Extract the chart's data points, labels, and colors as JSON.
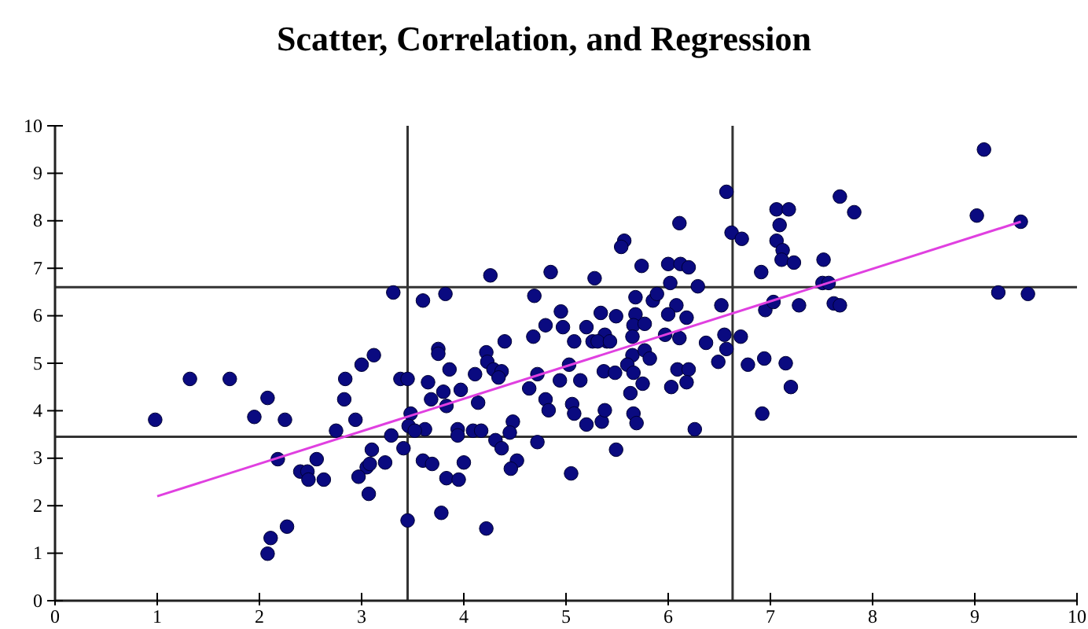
{
  "chart_data": {
    "type": "scatter",
    "title": "Scatter, Correlation, and Regression",
    "xlim": [
      0,
      10
    ],
    "ylim": [
      0,
      10
    ],
    "xticks": [
      0,
      1,
      2,
      3,
      4,
      5,
      6,
      7,
      8,
      9,
      10
    ],
    "yticks": [
      0,
      1,
      2,
      3,
      4,
      5,
      6,
      7,
      8,
      9,
      10
    ],
    "grid": false,
    "ref_lines": [
      {
        "axis": "x",
        "value": 3.45,
        "color": "#333333"
      },
      {
        "axis": "x",
        "value": 6.63,
        "color": "#333333"
      },
      {
        "axis": "y",
        "value": 3.45,
        "color": "#333333"
      },
      {
        "axis": "y",
        "value": 6.6,
        "color": "#333333"
      }
    ],
    "series": [
      {
        "color": "#0a0a80",
        "marker": "circle",
        "x": [
          0.98,
          1.32,
          1.71,
          1.95,
          2.08,
          2.25,
          2.18,
          2.4,
          2.47,
          2.48,
          2.63,
          2.56,
          2.75,
          2.84,
          2.83,
          3.0,
          2.94,
          3.12,
          3.1,
          3.05,
          2.97,
          3.07,
          2.11,
          2.27,
          2.08,
          4.26,
          4.85,
          5.28,
          3.31,
          3.6,
          3.82,
          4.69,
          4.95,
          5.34,
          4.8,
          4.68,
          4.97,
          5.2,
          5.08,
          5.26,
          5.4,
          4.4,
          3.75,
          3.75,
          4.22,
          4.23,
          4.29,
          4.37,
          4.11,
          3.86,
          4.34,
          3.38,
          3.45,
          3.65,
          3.8,
          3.68,
          3.97,
          3.83,
          4.14,
          4.64,
          4.72,
          4.94,
          5.03,
          5.14,
          5.37,
          4.8,
          4.83,
          5.06,
          5.08,
          5.2,
          5.35,
          3.48,
          3.46,
          3.62,
          3.52,
          3.29,
          3.41,
          3.94,
          4.09,
          4.17,
          3.94,
          4.48,
          4.45,
          4.31,
          4.37,
          4.72,
          3.6,
          3.69,
          4.0,
          3.23,
          3.08,
          4.52,
          4.46,
          3.83,
          3.95,
          5.05,
          3.78,
          3.45,
          4.22,
          6.57,
          7.06,
          7.18,
          7.09,
          6.62,
          6.72,
          6.11,
          5.57,
          5.54,
          7.06,
          7.12,
          7.11,
          7.23,
          5.74,
          6.0,
          6.12,
          6.2,
          6.91,
          6.02,
          6.29,
          5.68,
          5.85,
          5.89,
          6.08,
          6.52,
          7.28,
          6.95,
          7.03,
          5.49,
          5.68,
          5.66,
          5.77,
          6.0,
          6.18,
          5.38,
          5.31,
          5.43,
          5.65,
          5.97,
          6.11,
          6.55,
          6.71,
          6.37,
          5.65,
          5.77,
          5.82,
          5.6,
          6.57,
          6.49,
          5.48,
          5.66,
          6.09,
          6.2,
          6.03,
          6.18,
          5.75,
          5.63,
          6.78,
          6.94,
          7.15,
          7.2,
          6.92,
          6.26,
          5.49,
          5.38,
          5.66,
          5.69,
          9.09,
          7.68,
          7.82,
          9.02,
          9.45,
          7.52,
          7.51,
          7.57,
          7.62,
          7.68,
          9.23,
          9.52
        ],
        "values": [
          3.81,
          4.67,
          4.67,
          3.87,
          4.27,
          3.81,
          2.98,
          2.72,
          2.72,
          2.55,
          2.55,
          2.98,
          3.58,
          4.67,
          4.24,
          4.97,
          3.81,
          5.17,
          3.18,
          2.81,
          2.61,
          2.25,
          1.32,
          1.56,
          0.99,
          6.85,
          6.92,
          6.79,
          6.49,
          6.32,
          6.46,
          6.42,
          6.09,
          6.06,
          5.8,
          5.56,
          5.76,
          5.76,
          5.46,
          5.46,
          5.46,
          5.46,
          5.3,
          5.2,
          5.23,
          5.03,
          4.87,
          4.83,
          4.77,
          4.87,
          4.7,
          4.67,
          4.67,
          4.6,
          4.4,
          4.24,
          4.44,
          4.1,
          4.17,
          4.47,
          4.77,
          4.64,
          4.97,
          4.64,
          4.83,
          4.24,
          4.01,
          4.14,
          3.94,
          3.71,
          3.77,
          3.94,
          3.68,
          3.61,
          3.58,
          3.48,
          3.21,
          3.61,
          3.58,
          3.58,
          3.48,
          3.77,
          3.54,
          3.38,
          3.21,
          3.34,
          2.95,
          2.88,
          2.91,
          2.91,
          2.88,
          2.95,
          2.78,
          2.58,
          2.55,
          2.68,
          1.85,
          1.69,
          1.52,
          8.61,
          8.24,
          8.24,
          7.91,
          7.75,
          7.62,
          7.95,
          7.58,
          7.45,
          7.58,
          7.38,
          7.18,
          7.12,
          7.05,
          7.09,
          7.09,
          7.02,
          6.92,
          6.69,
          6.62,
          6.39,
          6.32,
          6.46,
          6.22,
          6.22,
          6.22,
          6.12,
          6.29,
          5.99,
          6.03,
          5.8,
          5.83,
          6.03,
          5.96,
          5.6,
          5.46,
          5.46,
          5.56,
          5.6,
          5.53,
          5.6,
          5.56,
          5.43,
          5.17,
          5.27,
          5.1,
          4.97,
          5.3,
          5.03,
          4.8,
          4.8,
          4.87,
          4.87,
          4.5,
          4.6,
          4.57,
          4.37,
          4.97,
          5.1,
          5.0,
          4.5,
          3.94,
          3.61,
          3.18,
          4.01,
          3.94,
          3.74,
          9.5,
          8.51,
          8.18,
          8.11,
          7.98,
          7.18,
          6.69,
          6.69,
          6.26,
          6.22,
          6.49,
          6.46
        ]
      },
      {
        "type": "line",
        "color": "#e040e0",
        "marker": "none",
        "x": [
          1,
          9.45
        ],
        "values": [
          2.2,
          7.98
        ]
      }
    ]
  }
}
